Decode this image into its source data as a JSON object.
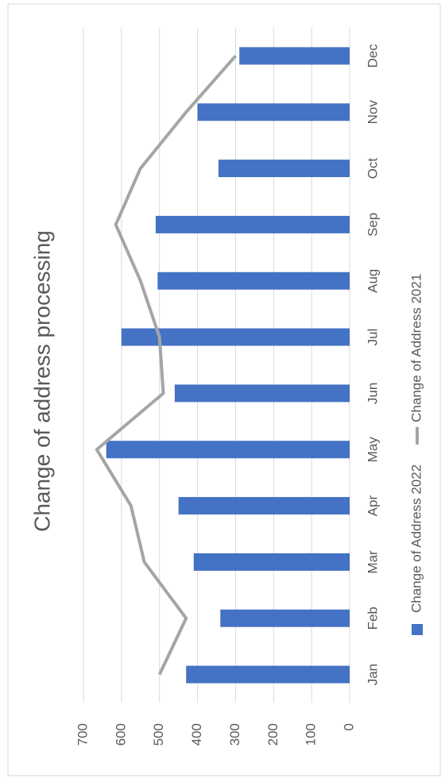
{
  "chart_data": {
    "type": "bar",
    "title": "Change of address processing",
    "categories": [
      "Jan",
      "Feb",
      "Mar",
      "Apr",
      "May",
      "Jun",
      "Jul",
      "Aug",
      "Sep",
      "Oct",
      "Nov",
      "Dec"
    ],
    "series": [
      {
        "name": "Change of Address 2022",
        "type": "bar",
        "color": "#4472c4",
        "values": [
          430,
          340,
          410,
          450,
          640,
          460,
          600,
          505,
          510,
          345,
          400,
          290
        ]
      },
      {
        "name": "Change of Address 2021",
        "type": "line",
        "color": "#a5a5a5",
        "values": [
          500,
          430,
          540,
          575,
          665,
          490,
          500,
          550,
          615,
          550,
          430,
          300
        ]
      }
    ],
    "ylim": [
      0,
      700
    ],
    "yticks": [
      0,
      100,
      200,
      300,
      400,
      500,
      600,
      700
    ],
    "grid": true,
    "legend": "bottom"
  }
}
